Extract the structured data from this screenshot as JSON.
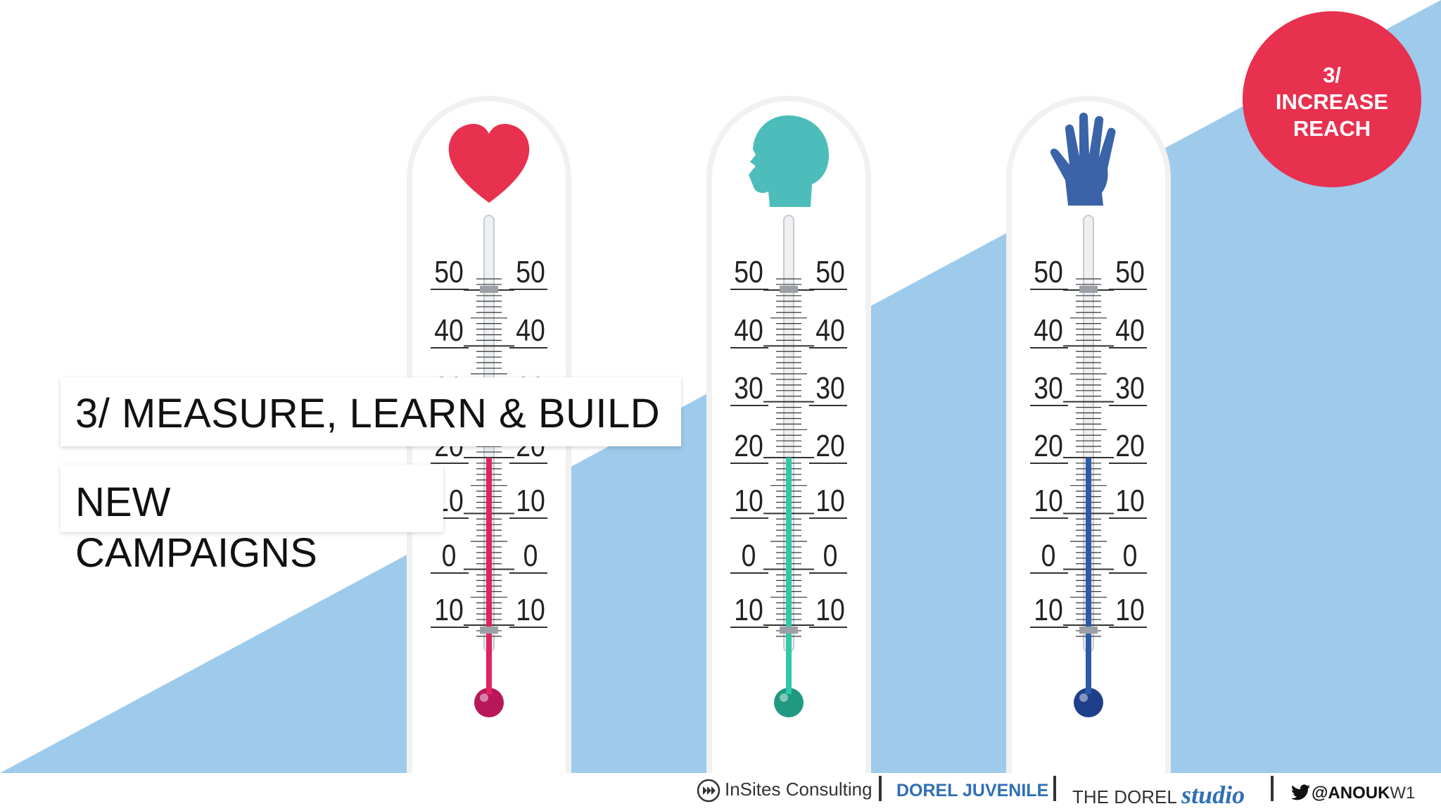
{
  "slide": {
    "title": "3/ MEASURE, LEARN & BUILD",
    "subtitle": "NEW CAMPAIGNS"
  },
  "badge": {
    "line1": "3/",
    "line2": "INCREASE",
    "line3": "REACH",
    "color": "#e8304f"
  },
  "thermometers": [
    {
      "icon": "heart-icon",
      "color": "#e8304f",
      "fluid": "#e0245e",
      "bulb": "#b8175a",
      "level": 20
    },
    {
      "icon": "head-icon",
      "color": "#4dbdbb",
      "fluid": "#2fc9a8",
      "bulb": "#1f9a80",
      "level": 20
    },
    {
      "icon": "hand-icon",
      "color": "#3a63a8",
      "fluid": "#2c5aa8",
      "bulb": "#1f3f8a",
      "level": 20
    }
  ],
  "scale_labels": [
    "50",
    "40",
    "30",
    "20",
    "10",
    "0",
    "10"
  ],
  "footer": {
    "insites": "InSites Consulting",
    "dorel_juvenile": "DOREL JUVENILE",
    "the_dorel": "THE DOREL",
    "studio": "studio",
    "handle_bold": "@ANOUK",
    "handle_light": "W1"
  },
  "colors": {
    "background_blue": "#9ecbeb",
    "accent_red": "#e8304f"
  }
}
